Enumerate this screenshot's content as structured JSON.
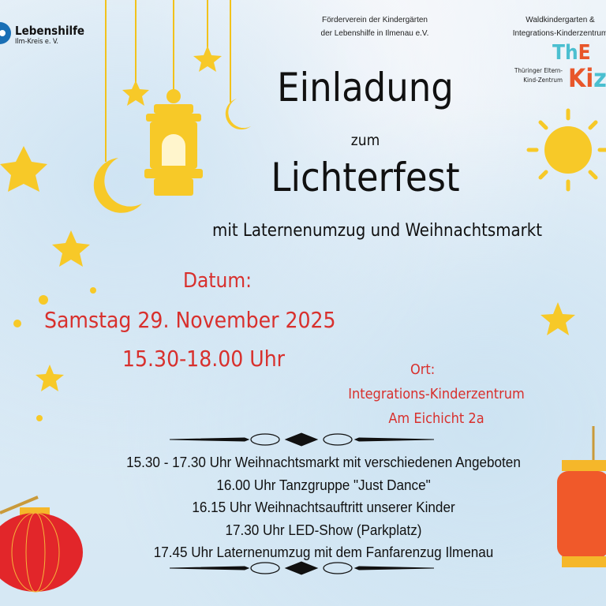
{
  "logos": {
    "lebenshilfe": {
      "name": "Lebenshilfe",
      "sub": "Ilm-Kreis e. V.",
      "color": "#1a6fb5"
    },
    "thekiz": {
      "letters": "ThE KiZ",
      "caption_line1": "Thüringer Eltern-",
      "caption_line2": "Kind-Zentrum",
      "colors": [
        "#4bbfd0",
        "#e8562a"
      ]
    }
  },
  "header": {
    "left_org": [
      "Förderverein der Kindergärten",
      "der Lebenshilfe in Ilmenau e.V."
    ],
    "right_org": [
      "Waldkindergarten &",
      "Integrations-Kinderzentrum"
    ]
  },
  "title": {
    "line1": "Einladung",
    "line2": "zum",
    "line3": "Lichterfest"
  },
  "subtitle": "mit Laternenumzug und Weihnachtsmarkt",
  "date": {
    "label": "Datum:",
    "day": "Samstag 29. November 2025",
    "time": "15.30-18.00 Uhr"
  },
  "location": {
    "label": "Ort:",
    "name": "Integrations-Kinderzentrum",
    "address": "Am Eichicht 2a"
  },
  "schedule": [
    "15.30 - 17.30 Uhr Weihnachtsmarkt mit verschiedenen Angeboten",
    "16.00 Uhr Tanzgruppe \"Just Dance\"",
    "16.15 Uhr Weihnachtsauftritt unserer Kinder",
    "17.30 Uhr LED-Show (Parkplatz)",
    "17.45 Uhr Laternenumzug mit dem Fanfarenzug Ilmenau"
  ],
  "colors": {
    "accent_red": "#d8302d",
    "gold": "#f7c928",
    "lantern_red": "#e2262a",
    "lantern_orange": "#f0592a"
  }
}
